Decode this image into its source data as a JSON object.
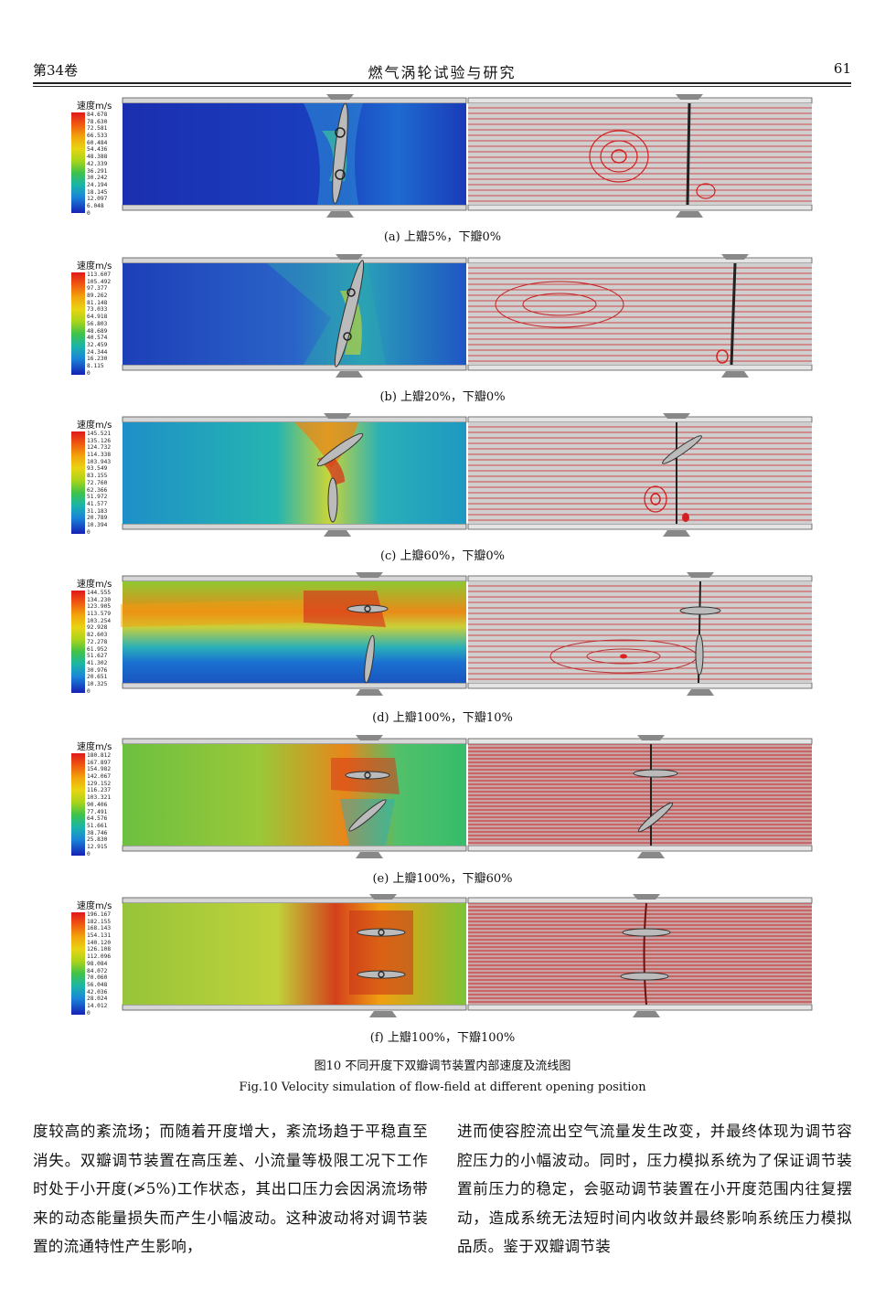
{
  "header": {
    "volume": "第34卷",
    "journal": "燃气涡轮试验与研究",
    "page": "61"
  },
  "legend_title": "速度m/s",
  "panels": [
    {
      "caption": "(a)  上瓣5%，下瓣0%",
      "legend": [
        "84.678",
        "78.630",
        "72.581",
        "66.533",
        "60.484",
        "54.436",
        "48.388",
        "42.339",
        "36.291",
        "30.242",
        "24.194",
        "18.145",
        "12.097",
        "6.048",
        "0"
      ]
    },
    {
      "caption": "(b)  上瓣20%，下瓣0%",
      "legend": [
        "113.607",
        "105.492",
        "97.377",
        "89.262",
        "81.148",
        "73.033",
        "64.918",
        "56.803",
        "48.689",
        "40.574",
        "32.459",
        "24.344",
        "16.230",
        "8.115",
        "0"
      ]
    },
    {
      "caption": "(c)  上瓣60%，下瓣0%",
      "legend": [
        "145.521",
        "135.126",
        "124.732",
        "114.338",
        "103.943",
        "93.549",
        "83.155",
        "72.760",
        "62.366",
        "51.972",
        "41.577",
        "31.183",
        "20.789",
        "10.394",
        "0"
      ]
    },
    {
      "caption": "(d)  上瓣100%，下瓣10%",
      "legend": [
        "144.555",
        "134.230",
        "123.905",
        "113.579",
        "103.254",
        "92.928",
        "82.603",
        "72.278",
        "61.952",
        "51.627",
        "41.302",
        "30.976",
        "20.651",
        "10.325",
        "0"
      ]
    },
    {
      "caption": "(e)  上瓣100%，下瓣60%",
      "legend": [
        "180.812",
        "167.897",
        "154.982",
        "142.067",
        "129.152",
        "116.237",
        "103.321",
        "90.406",
        "77.491",
        "64.576",
        "51.661",
        "38.746",
        "25.830",
        "12.915",
        "0"
      ]
    },
    {
      "caption": "(f)  上瓣100%，下瓣100%",
      "legend": [
        "196.167",
        "182.155",
        "168.143",
        "154.131",
        "140.120",
        "126.108",
        "112.096",
        "98.084",
        "84.072",
        "70.060",
        "56.048",
        "42.036",
        "28.024",
        "14.012",
        "0"
      ]
    }
  ],
  "figure": {
    "caption_cn": "图10  不同开度下双瓣调节装置内部速度及流线图",
    "caption_en": "Fig.10  Velocity simulation of flow-field at different opening position"
  },
  "body": {
    "col1": "度较高的紊流场；而随着开度增大，紊流场趋于平稳直至消失。双瓣调节装置在高压差、小流量等极限工况下工作时处于小开度(≯5%)工作状态，其出口压力会因涡流场带来的动态能量损失而产生小幅波动。这种波动将对调节装置的流通特性产生影响，",
    "col2": "进而使容腔流出空气流量发生改变，并最终体现为调节容腔压力的小幅波动。同时，压力模拟系统为了保证调节装置前压力的稳定，会驱动调节装置在小开度范围内往复摆动，造成系统无法短时间内收敛并最终影响系统压力模拟品质。鉴于双瓣调节装"
  }
}
